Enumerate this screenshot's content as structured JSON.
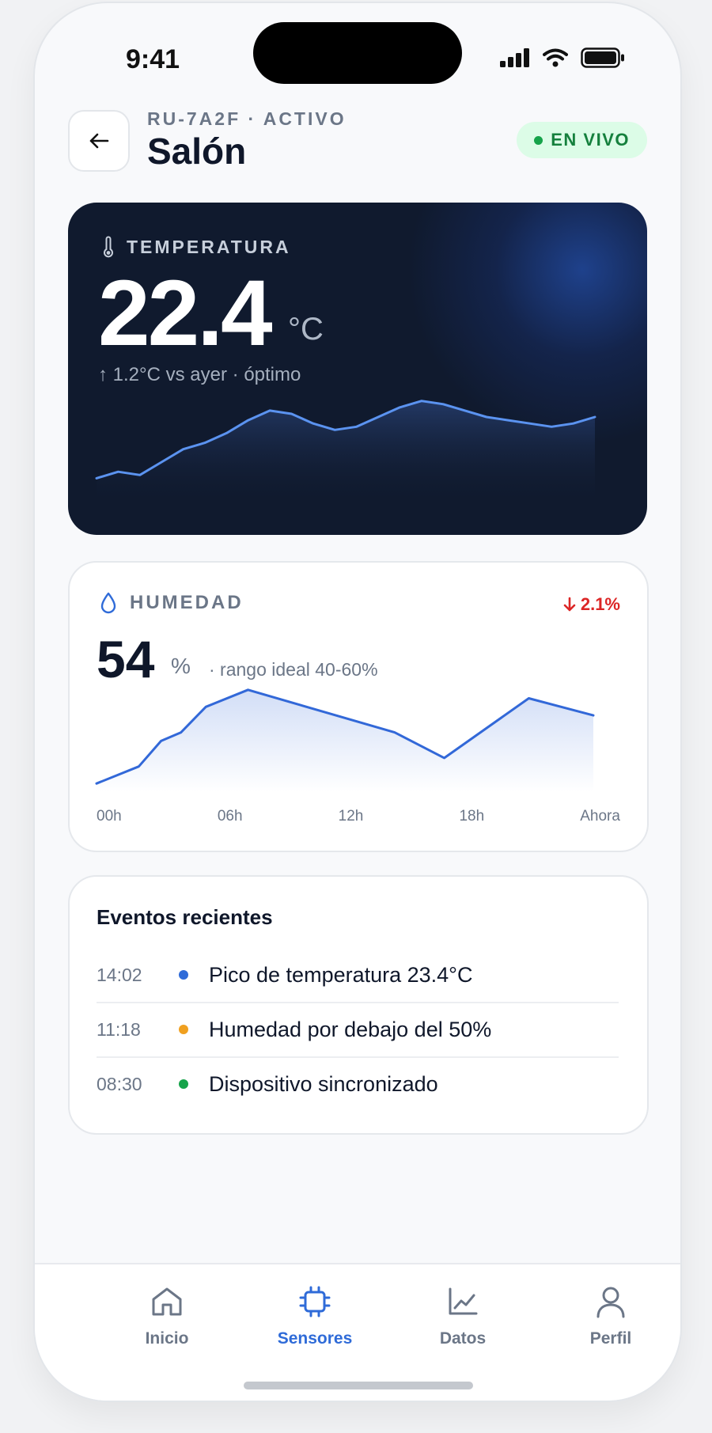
{
  "status_bar": {
    "time": "9:41"
  },
  "header": {
    "subtitle": "RU-7A2F · ACTIVO",
    "title": "Salón",
    "live_badge": "EN VIVO",
    "colors": {
      "live_bg": "#dcfce7",
      "live_fg": "#15803d"
    }
  },
  "temperature": {
    "label": "TEMPERATURA",
    "value": "22.4",
    "unit": "°C",
    "meta": "↑ 1.2°C vs ayer · óptimo",
    "icon": "thermometer-icon",
    "chart_data": {
      "type": "area",
      "values": [
        20.1,
        20.3,
        20.2,
        20.6,
        21.0,
        21.2,
        21.5,
        21.9,
        22.2,
        22.1,
        21.8,
        21.6,
        21.7,
        22.0,
        22.3,
        22.5,
        22.4,
        22.2,
        22.0,
        21.9,
        21.8,
        21.7,
        21.8,
        22.0
      ],
      "ylim": [
        19.2,
        23.5
      ],
      "color": "#5b93f0"
    }
  },
  "humidity": {
    "label": "HUMEDAD",
    "value": "54",
    "unit": "%",
    "note": "· rango ideal 40-60%",
    "delta": "2.1%",
    "icon": "water-drop-icon",
    "ticks": [
      "00h",
      "06h",
      "12h",
      "18h",
      "Ahora"
    ],
    "chart_data": {
      "type": "area",
      "values": [
        46,
        48,
        51,
        52,
        55,
        57,
        52,
        49,
        56,
        54
      ],
      "x_frac": [
        0,
        0.085,
        0.13,
        0.17,
        0.22,
        0.305,
        0.6,
        0.7,
        0.87,
        1
      ],
      "ylim": [
        45,
        58
      ],
      "color": "#3268d8"
    }
  },
  "events": {
    "title": "Eventos recientes",
    "items": [
      {
        "time": "14:02",
        "text": "Pico de temperatura 23.4°C",
        "color": "#2f6bd8"
      },
      {
        "time": "11:18",
        "text": "Humedad por debajo del 50%",
        "color": "#f0a020"
      },
      {
        "time": "08:30",
        "text": "Dispositivo sincronizado",
        "color": "#16a34a"
      }
    ]
  },
  "nav": {
    "active_color": "#2f6bd8",
    "items": [
      {
        "label": "Inicio",
        "icon": "home-icon"
      },
      {
        "label": "Sensores",
        "icon": "chip-icon"
      },
      {
        "label": "Datos",
        "icon": "chart-icon"
      },
      {
        "label": "Perfil",
        "icon": "user-icon"
      }
    ]
  }
}
